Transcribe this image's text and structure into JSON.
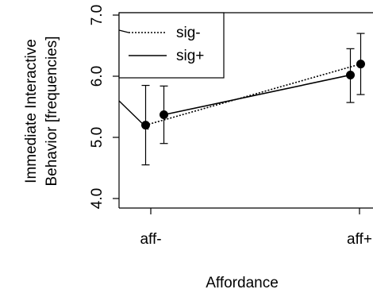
{
  "chart_data": {
    "type": "line",
    "title": "",
    "xlabel": "Affordance",
    "ylabel_line1": "Immediate Interactive",
    "ylabel_line2": "Behavior [frequencies]",
    "categories": [
      "aff-",
      "aff+"
    ],
    "ylim": [
      4.0,
      7.0
    ],
    "yticks": [
      "4.0",
      "5.0",
      "6.0",
      "7.0"
    ],
    "grid": false,
    "legend_position": "top-left",
    "series": [
      {
        "name": "sig-",
        "line_style": "dotted",
        "values": [
          5.2,
          6.2
        ],
        "err_low": [
          4.55,
          5.7
        ],
        "err_high": [
          5.85,
          6.7
        ]
      },
      {
        "name": "sig+",
        "line_style": "solid",
        "values": [
          5.37,
          6.02
        ],
        "err_low": [
          4.9,
          5.57
        ],
        "err_high": [
          5.84,
          6.45
        ]
      }
    ]
  }
}
